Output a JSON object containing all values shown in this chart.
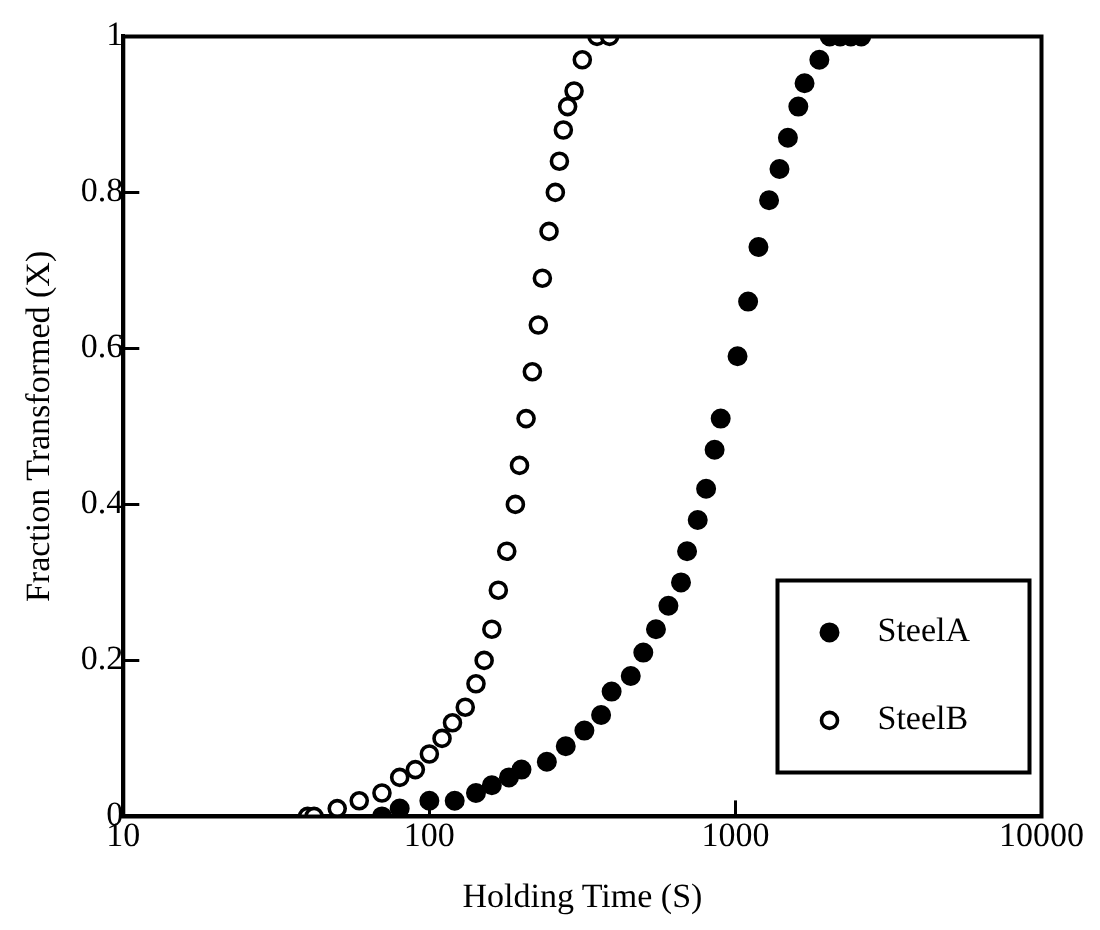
{
  "chart_data": {
    "type": "scatter",
    "xlabel": "Holding Time (S)",
    "ylabel": "Fraction Transformed (X)",
    "log": "x",
    "xlim": [
      10,
      10000
    ],
    "xticks": [
      10,
      100,
      1000,
      10000
    ],
    "ylim": [
      0,
      1
    ],
    "yticks": [
      0,
      0.2,
      0.4,
      0.6,
      0.8,
      1
    ],
    "grid": false,
    "legend": "bottom right",
    "marker": "circle",
    "series": [
      {
        "name": "SteelA",
        "color": "#000000",
        "x": [
          70,
          80,
          100,
          121,
          142,
          160,
          182,
          200,
          242,
          279,
          321,
          364,
          394,
          455,
          500,
          550,
          604,
          664,
          695,
          753,
          802,
          855,
          895,
          1016,
          1100,
          1189,
          1288,
          1393,
          1484,
          1605,
          1682,
          1880,
          2032,
          2199,
          2382,
          2577
        ],
        "values": [
          0,
          0.01,
          0.02,
          0.02,
          0.03,
          0.04,
          0.05,
          0.06,
          0.07,
          0.09,
          0.11,
          0.13,
          0.16,
          0.18,
          0.21,
          0.24,
          0.27,
          0.3,
          0.34,
          0.38,
          0.42,
          0.47,
          0.51,
          0.59,
          0.66,
          0.73,
          0.79,
          0.83,
          0.87,
          0.91,
          0.94,
          0.97,
          1,
          1,
          1,
          1
        ]
      },
      {
        "name": "SteelB",
        "color": "#000000",
        "x": [
          40,
          42,
          50,
          59,
          70,
          80,
          90,
          100,
          110,
          119,
          131,
          142,
          151,
          160,
          168,
          179,
          191,
          197,
          207,
          217,
          227,
          234,
          246,
          258,
          266,
          274,
          283,
          297,
          316,
          353,
          388
        ],
        "values": [
          0,
          0,
          0.01,
          0.02,
          0.03,
          0.05,
          0.06,
          0.08,
          0.1,
          0.12,
          0.14,
          0.17,
          0.2,
          0.24,
          0.29,
          0.34,
          0.4,
          0.45,
          0.51,
          0.57,
          0.63,
          0.69,
          0.75,
          0.8,
          0.84,
          0.88,
          0.91,
          0.93,
          0.97,
          1,
          1
        ]
      }
    ]
  }
}
